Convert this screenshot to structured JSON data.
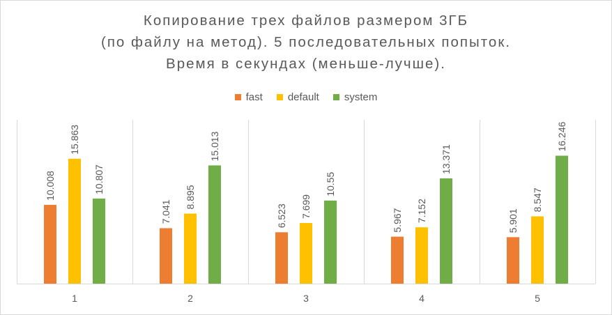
{
  "chart_data": {
    "type": "bar",
    "title_lines": [
      "Копирование трех файлов размером 3ГБ",
      "(по файлу на метод). 5 последовательных попыток.",
      "Время в секундах (меньше-лучше)."
    ],
    "xlabel": "",
    "ylabel": "",
    "categories": [
      "1",
      "2",
      "3",
      "4",
      "5"
    ],
    "series": [
      {
        "name": "fast",
        "color": "#ED7D31",
        "values": [
          10.008,
          7.041,
          6.523,
          5.967,
          5.901
        ],
        "labels": [
          "10.008",
          "7.041",
          "6.523",
          "5.967",
          "5.901"
        ]
      },
      {
        "name": "default",
        "color": "#FFC000",
        "values": [
          15.863,
          8.895,
          7.699,
          7.152,
          8.547
        ],
        "labels": [
          "15.863",
          "8.895",
          "7.699",
          "7.152",
          "8.547"
        ]
      },
      {
        "name": "system",
        "color": "#70AD47",
        "values": [
          10.807,
          15.013,
          10.55,
          13.371,
          16.246
        ],
        "labels": [
          "10.807",
          "15.013",
          "10.55",
          "13.371",
          "16.246"
        ]
      }
    ],
    "ylim": [
      0,
      20
    ],
    "legend_position": "top",
    "grid": "vertical category separators",
    "data_labels": "rotated above bars"
  }
}
